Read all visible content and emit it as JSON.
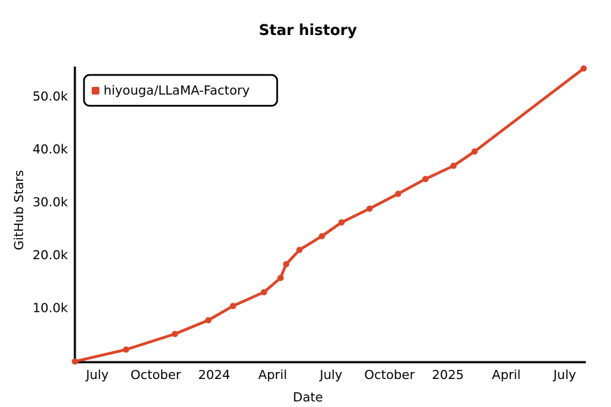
{
  "chart_data": {
    "type": "line",
    "title": "Star history",
    "x_label": "Date",
    "y_label": "GitHub Stars",
    "x": [
      2023.404,
      2023.623,
      2023.832,
      2023.975,
      2024.081,
      2024.213,
      2024.284,
      2024.308,
      2024.365,
      2024.461,
      2024.545,
      2024.665,
      2024.787,
      2024.904,
      2025.024,
      2025.114,
      2025.581
    ],
    "series": [
      {
        "name": "hiyouga/LLaMA-Factory",
        "color": "#dd4528",
        "values": [
          0,
          2250,
          5200,
          7800,
          10500,
          13100,
          15800,
          18400,
          21100,
          23700,
          26300,
          28900,
          31700,
          34500,
          37000,
          39700,
          55400
        ]
      }
    ],
    "xlim": [
      2023.404,
      2025.584
    ],
    "xticks": [
      {
        "value": 2023.5,
        "label": "July"
      },
      {
        "value": 2023.75,
        "label": "October"
      },
      2024,
      {
        "value": 2024.25,
        "label": "April"
      },
      {
        "value": 2024.5,
        "label": "July"
      },
      {
        "value": 2024.75,
        "label": "October"
      },
      2025,
      {
        "value": 2025.25,
        "label": "April"
      },
      {
        "value": 2025.5,
        "label": "July"
      }
    ],
    "ylim": [
      0,
      55500
    ],
    "yticks": [
      {
        "value": 10000,
        "label": "10.0k"
      },
      {
        "value": 20000,
        "label": "20.0k"
      },
      {
        "value": 30000,
        "label": "30.0k"
      },
      {
        "value": 40000,
        "label": "40.0k"
      },
      {
        "value": 50000,
        "label": "50.0k"
      }
    ],
    "legend": "top-left",
    "grid": false
  }
}
